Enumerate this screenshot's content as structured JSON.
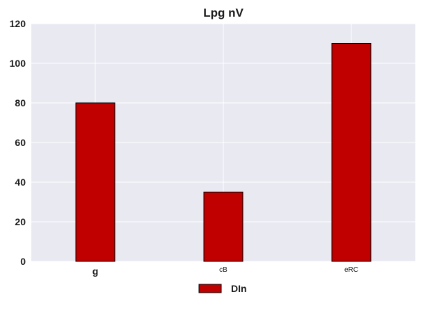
{
  "chart_data": {
    "type": "bar",
    "title": "Lpg nV",
    "xlabel": "",
    "ylabel": "",
    "categories": [
      "g",
      "cB",
      "eRC"
    ],
    "series": [
      {
        "name": "DIn",
        "values": [
          80,
          35,
          110
        ],
        "color": "#c00000"
      }
    ],
    "ylim": [
      0,
      120
    ],
    "yticks": [
      0,
      20,
      40,
      60,
      80,
      100,
      120
    ],
    "grid": true,
    "legend": "bottom-center",
    "background_color": "#e9e9f2",
    "grid_color": "#ffffff",
    "bar_edge_color": "#000000"
  }
}
